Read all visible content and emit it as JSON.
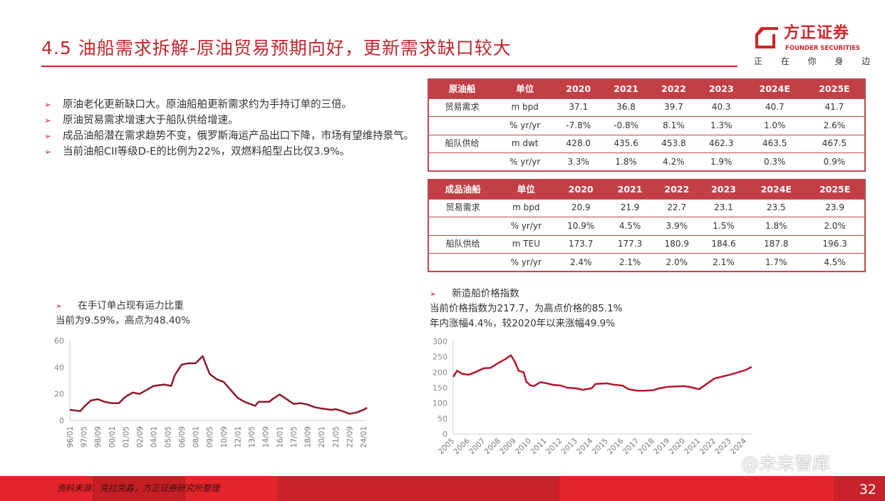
{
  "title": "4.5 油船需求拆解-原油贸易预期向好，更新需求缺口较大",
  "logo": {
    "cn": "方正证券",
    "en": "FOUNDER SECURITIES",
    "slogan": "正 在 你 身 边"
  },
  "bullets": [
    "原油老化更新缺口大。原油船舶更新需求约为手持订单的三倍。",
    "原油贸易需求增速大于船队供给增速。",
    "成品油船潜在需求趋势不变，俄罗斯海运产品出口下降，市场有望维持景气。",
    "当前油船CII等级D-E的比例为22%，双燃料船型占比仅3.9%。"
  ],
  "tables": [
    {
      "headers": [
        "原油船",
        "单位",
        "2020",
        "2021",
        "2022",
        "2023",
        "2024E",
        "2025E"
      ],
      "rows": [
        [
          "贸易需求",
          "m bpd",
          "37.1",
          "36.8",
          "39.7",
          "40.3",
          "40.7",
          "41.7"
        ],
        [
          "",
          "% yr/yr",
          "-7.8%",
          "-0.8%",
          "8.1%",
          "1.3%",
          "1.0%",
          "2.6%"
        ],
        [
          "船队供给",
          "m dwt",
          "428.0",
          "435.6",
          "453.8",
          "462.3",
          "463.5",
          "467.5"
        ],
        [
          "",
          "% yr/yr",
          "3.3%",
          "1.8%",
          "4.2%",
          "1.9%",
          "0.3%",
          "0.9%"
        ]
      ]
    },
    {
      "headers": [
        "成品油船",
        "单位",
        "2020",
        "2021",
        "2022",
        "2023",
        "2024E",
        "2025E"
      ],
      "rows": [
        [
          "贸易需求",
          "m bpd",
          "20.9",
          "21.9",
          "22.7",
          "23.1",
          "23.5",
          "23.9"
        ],
        [
          "",
          "% yr/yr",
          "10.9%",
          "4.5%",
          "3.9%",
          "1.5%",
          "1.8%",
          "2.0%"
        ],
        [
          "船队供给",
          "m TEU",
          "173.7",
          "177.3",
          "180.9",
          "184.6",
          "187.8",
          "196.3"
        ],
        [
          "",
          "% yr/yr",
          "2.4%",
          "2.1%",
          "2.0%",
          "2.1%",
          "1.7%",
          "4.5%"
        ]
      ]
    }
  ],
  "chart_data": [
    {
      "type": "line",
      "title": "在手订单占现有运力比重",
      "subtitle": "当前为9.59%，高点为48.40%",
      "ylim": [
        0,
        60
      ],
      "yticks": [
        "0",
        "20",
        "40",
        "60"
      ],
      "xticks": [
        "96/01",
        "97/05",
        "98/09",
        "00/01",
        "01/05",
        "02/09",
        "04/01",
        "05/05",
        "06/09",
        "08/01",
        "09/05",
        "10/09",
        "12/01",
        "13/05",
        "14/09",
        "16/01",
        "17/05",
        "18/09",
        "20/01",
        "21/05",
        "22/09",
        "24/01"
      ],
      "color": "#8b1a2b",
      "x": [
        "96/01",
        "97/01",
        "97/05",
        "98/01",
        "98/09",
        "99/05",
        "00/01",
        "00/09",
        "01/05",
        "02/01",
        "02/09",
        "03/05",
        "04/01",
        "05/01",
        "05/09",
        "06/01",
        "06/09",
        "07/05",
        "08/01",
        "08/09",
        "09/05",
        "10/01",
        "10/09",
        "11/05",
        "12/01",
        "12/09",
        "13/05",
        "13/09",
        "14/01",
        "15/01",
        "15/05",
        "16/01",
        "16/09",
        "17/05",
        "18/01",
        "18/09",
        "19/05",
        "20/01",
        "21/01",
        "21/05",
        "22/01",
        "22/09",
        "23/05",
        "24/01",
        "24/05"
      ],
      "y": [
        8,
        7,
        10,
        15,
        16,
        14,
        13,
        13,
        18,
        21,
        20,
        23,
        26,
        27,
        26,
        34,
        42,
        43,
        43,
        48.4,
        35,
        31,
        29,
        23,
        17,
        14,
        12,
        11,
        14,
        14,
        16,
        19.5,
        16,
        12.5,
        13,
        12,
        10,
        9,
        8,
        8.5,
        7,
        5,
        6,
        8,
        9.59
      ]
    },
    {
      "type": "line",
      "title": "新造船价格指数",
      "subtitle": [
        "当前价格指数为217.7，为高点价格的85.1%",
        "年内涨幅4.4%，较2020年以来涨幅49.9%"
      ],
      "ylim": [
        0,
        300
      ],
      "yticks": [
        "0",
        "50",
        "100",
        "150",
        "200",
        "250",
        "300"
      ],
      "xticks": [
        "2005",
        "2006",
        "2007",
        "2008",
        "2009",
        "2010",
        "2011",
        "2012",
        "2013",
        "2014",
        "2015",
        "2016",
        "2017",
        "2018",
        "2019",
        "2020",
        "2021",
        "2022",
        "2023",
        "2024"
      ],
      "color": "#b5172e",
      "x": [
        "2005/01",
        "2005/04",
        "2005/08",
        "2006/01",
        "2006/06",
        "2007/01",
        "2007/06",
        "2008/01",
        "2008/06",
        "2008/10",
        "2009/01",
        "2009/04",
        "2009/08",
        "2009/10",
        "2010/01",
        "2010/04",
        "2010/09",
        "2011/01",
        "2011/06",
        "2012/01",
        "2012/06",
        "2013/01",
        "2013/06",
        "2014/01",
        "2014/04",
        "2015/01",
        "2015/06",
        "2016/01",
        "2016/06",
        "2017/01",
        "2017/06",
        "2018/01",
        "2018/06",
        "2019/01",
        "2020/01",
        "2020/06",
        "2021/01",
        "2021/06",
        "2022/01",
        "2022/06",
        "2023/01",
        "2023/06",
        "2024/01",
        "2024/06"
      ],
      "y": [
        185,
        205,
        195,
        192,
        200,
        213,
        214,
        232,
        243,
        255,
        235,
        205,
        200,
        170,
        158,
        155,
        168,
        165,
        160,
        157,
        150,
        148,
        143,
        148,
        162,
        164,
        160,
        157,
        145,
        140,
        140,
        142,
        148,
        153,
        155,
        152,
        145,
        160,
        180,
        185,
        192,
        198,
        207,
        217.7
      ]
    }
  ],
  "footer": {
    "source": "资料来源：克拉克森，方正证券研究所整理",
    "page": "32",
    "watermark": "@未来智库"
  },
  "colors": {
    "brand": "#c0272d",
    "table_header": "#c23f45"
  }
}
